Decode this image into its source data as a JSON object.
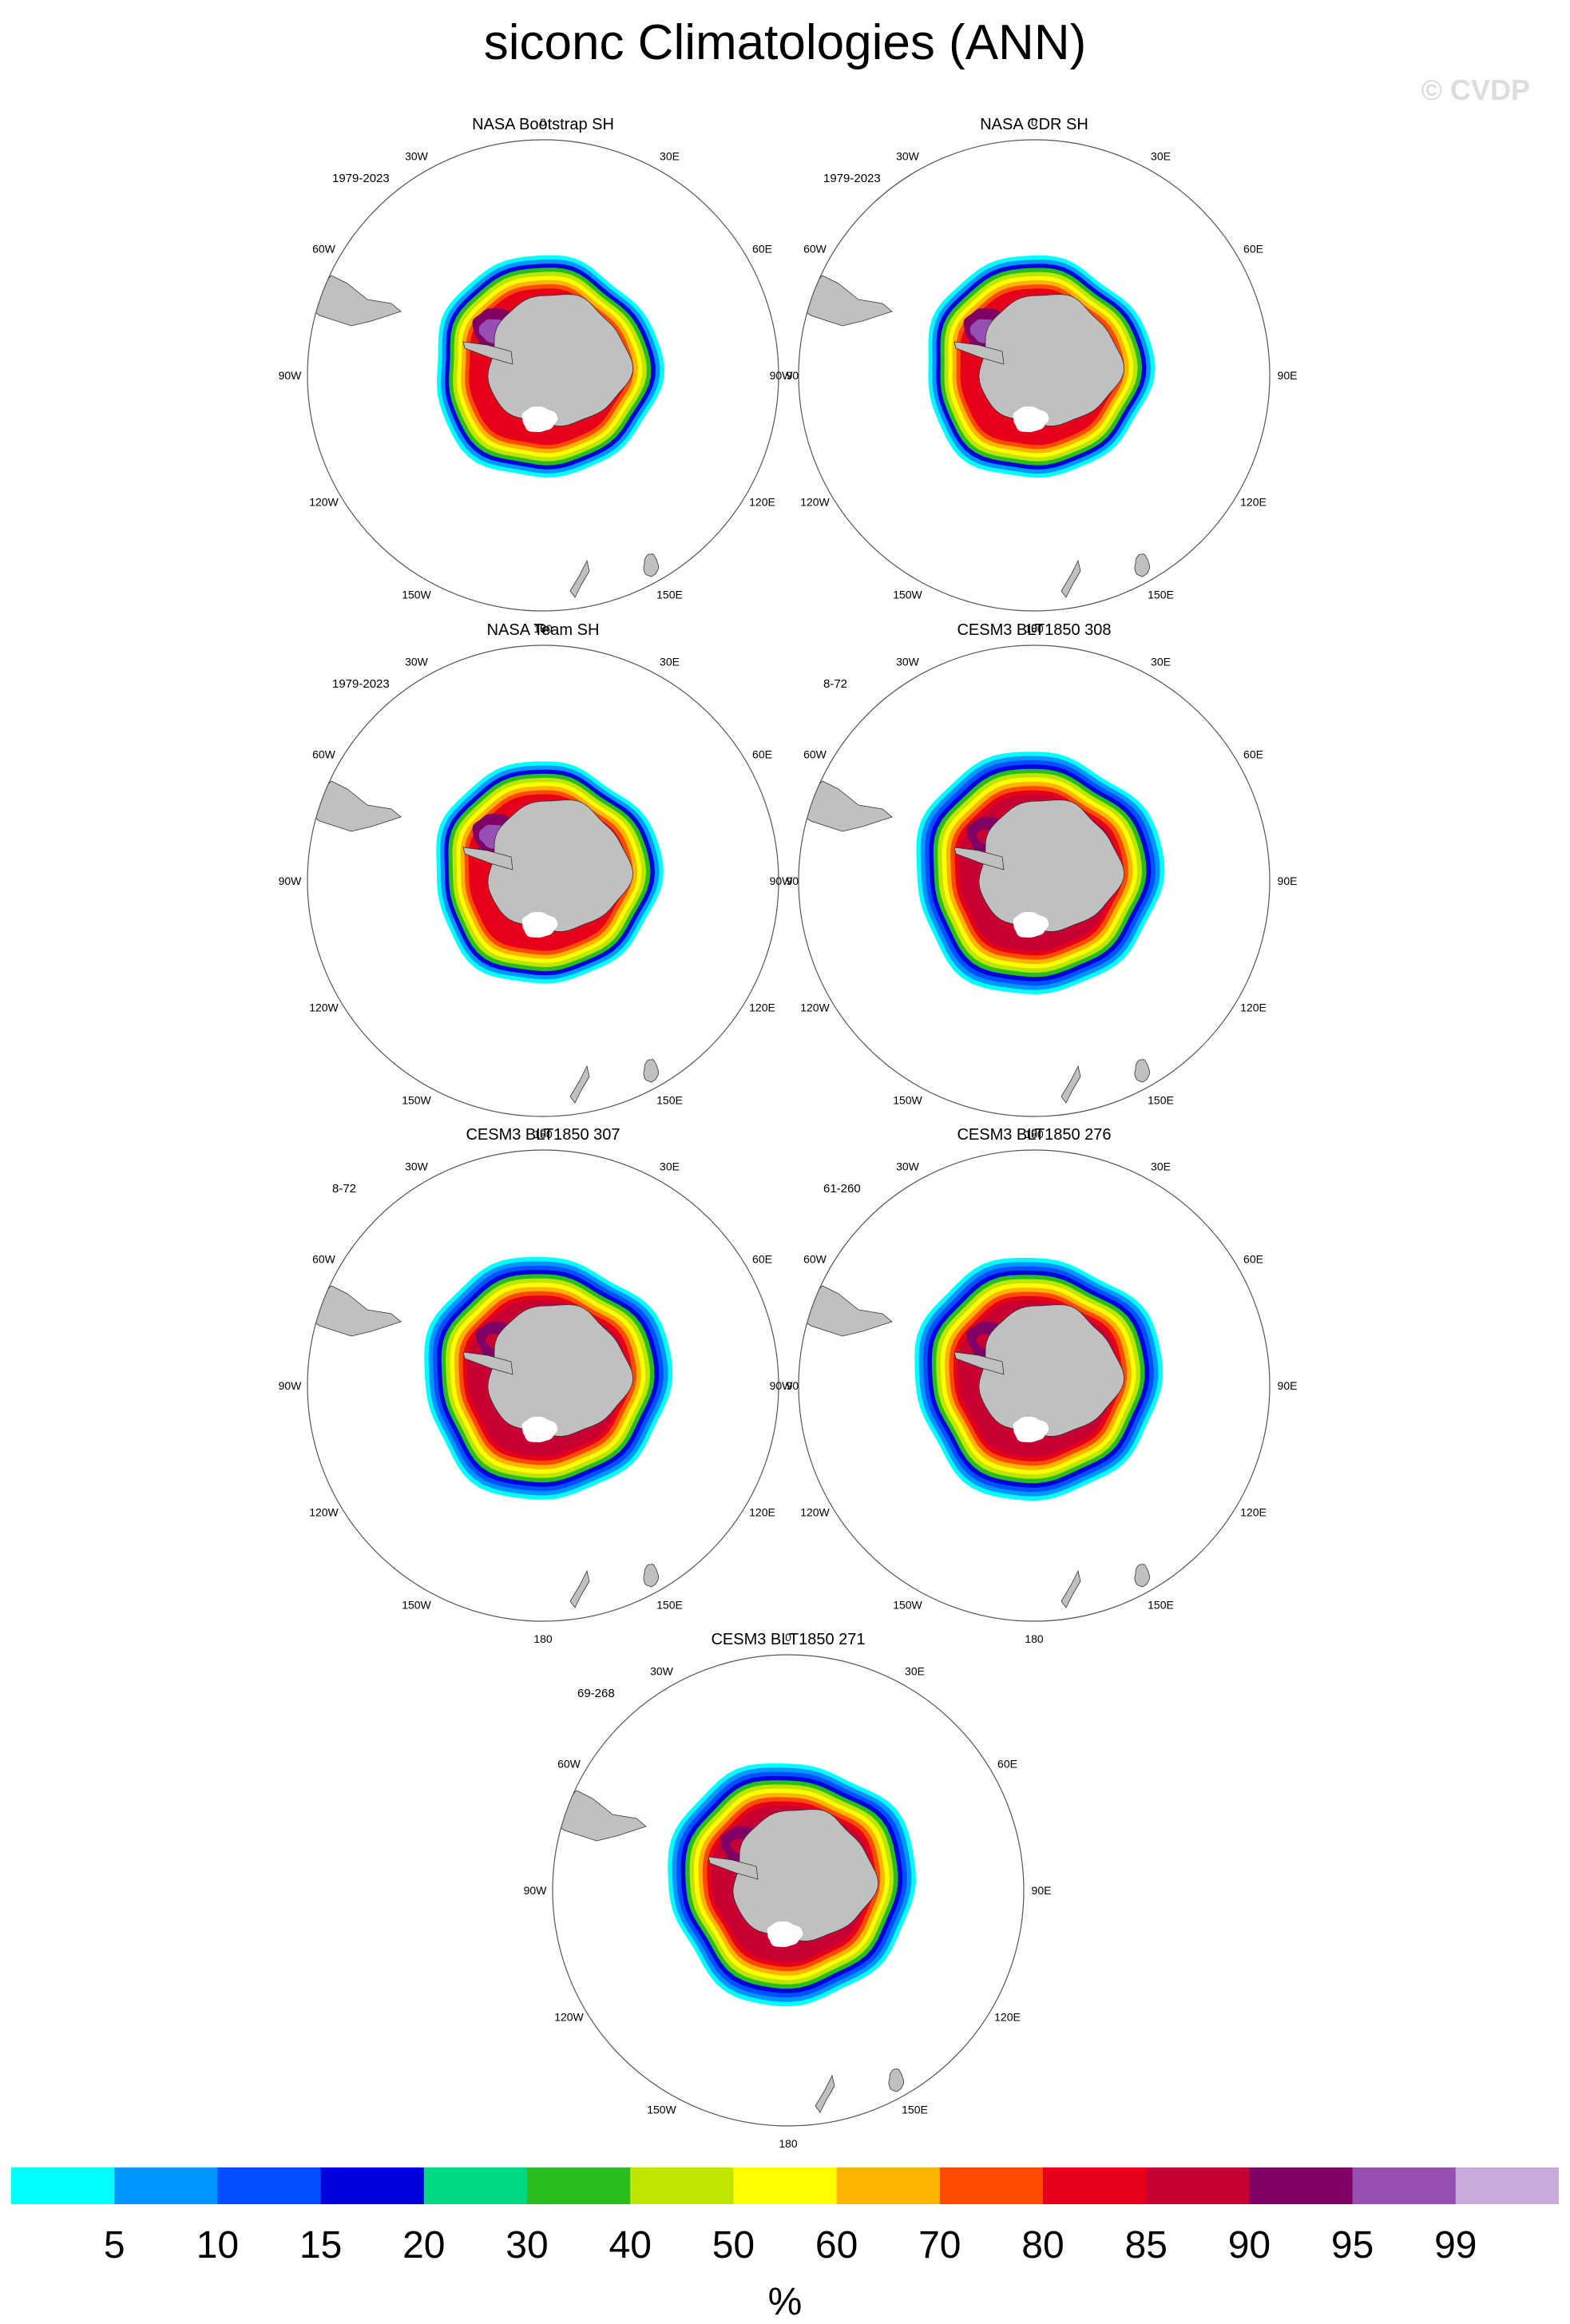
{
  "page_title": "siconc Climatologies (ANN)",
  "watermark": "© CVDP",
  "longitude_labels": {
    "top": "0",
    "bottom": "180",
    "lon30w": "30W",
    "lon30e": "30E",
    "lon60w": "60W",
    "lon60e": "60E",
    "lon90w": "90W",
    "lon90e": "90E",
    "lon120w": "120W",
    "lon120e": "120E",
    "lon150w": "150W",
    "lon150e": "150E"
  },
  "panels": [
    {
      "title": "NASA Bootstrap SH",
      "years": "1979-2023",
      "style": "obs"
    },
    {
      "title": "NASA CDR SH",
      "years": "1979-2023",
      "style": "obs"
    },
    {
      "title": "NASA Team SH",
      "years": "1979-2023",
      "style": "obs"
    },
    {
      "title": "CESM3 BLT1850 308",
      "years": "8-72",
      "style": "model"
    },
    {
      "title": "CESM3 BLT1850 307",
      "years": "8-72",
      "style": "model"
    },
    {
      "title": "CESM3 BLT1850 276",
      "years": "61-260",
      "style": "model"
    },
    {
      "title": "CESM3 BLT1850 271",
      "years": "69-268",
      "style": "model"
    }
  ],
  "colorbar": {
    "unit": "%",
    "tick_labels": [
      "5",
      "10",
      "15",
      "20",
      "30",
      "40",
      "50",
      "60",
      "70",
      "80",
      "85",
      "90",
      "95",
      "99"
    ],
    "colors": [
      "#00ffff",
      "#0096ff",
      "#0050ff",
      "#0000dc",
      "#00d782",
      "#28be1e",
      "#bee600",
      "#ffff00",
      "#ffb400",
      "#ff4b00",
      "#e60019",
      "#c80032",
      "#800064",
      "#9650b4",
      "#c8aadc"
    ]
  },
  "colors": {
    "land": "#c0c0c0",
    "ocean": "#ffffff",
    "circle": "#555555"
  }
}
